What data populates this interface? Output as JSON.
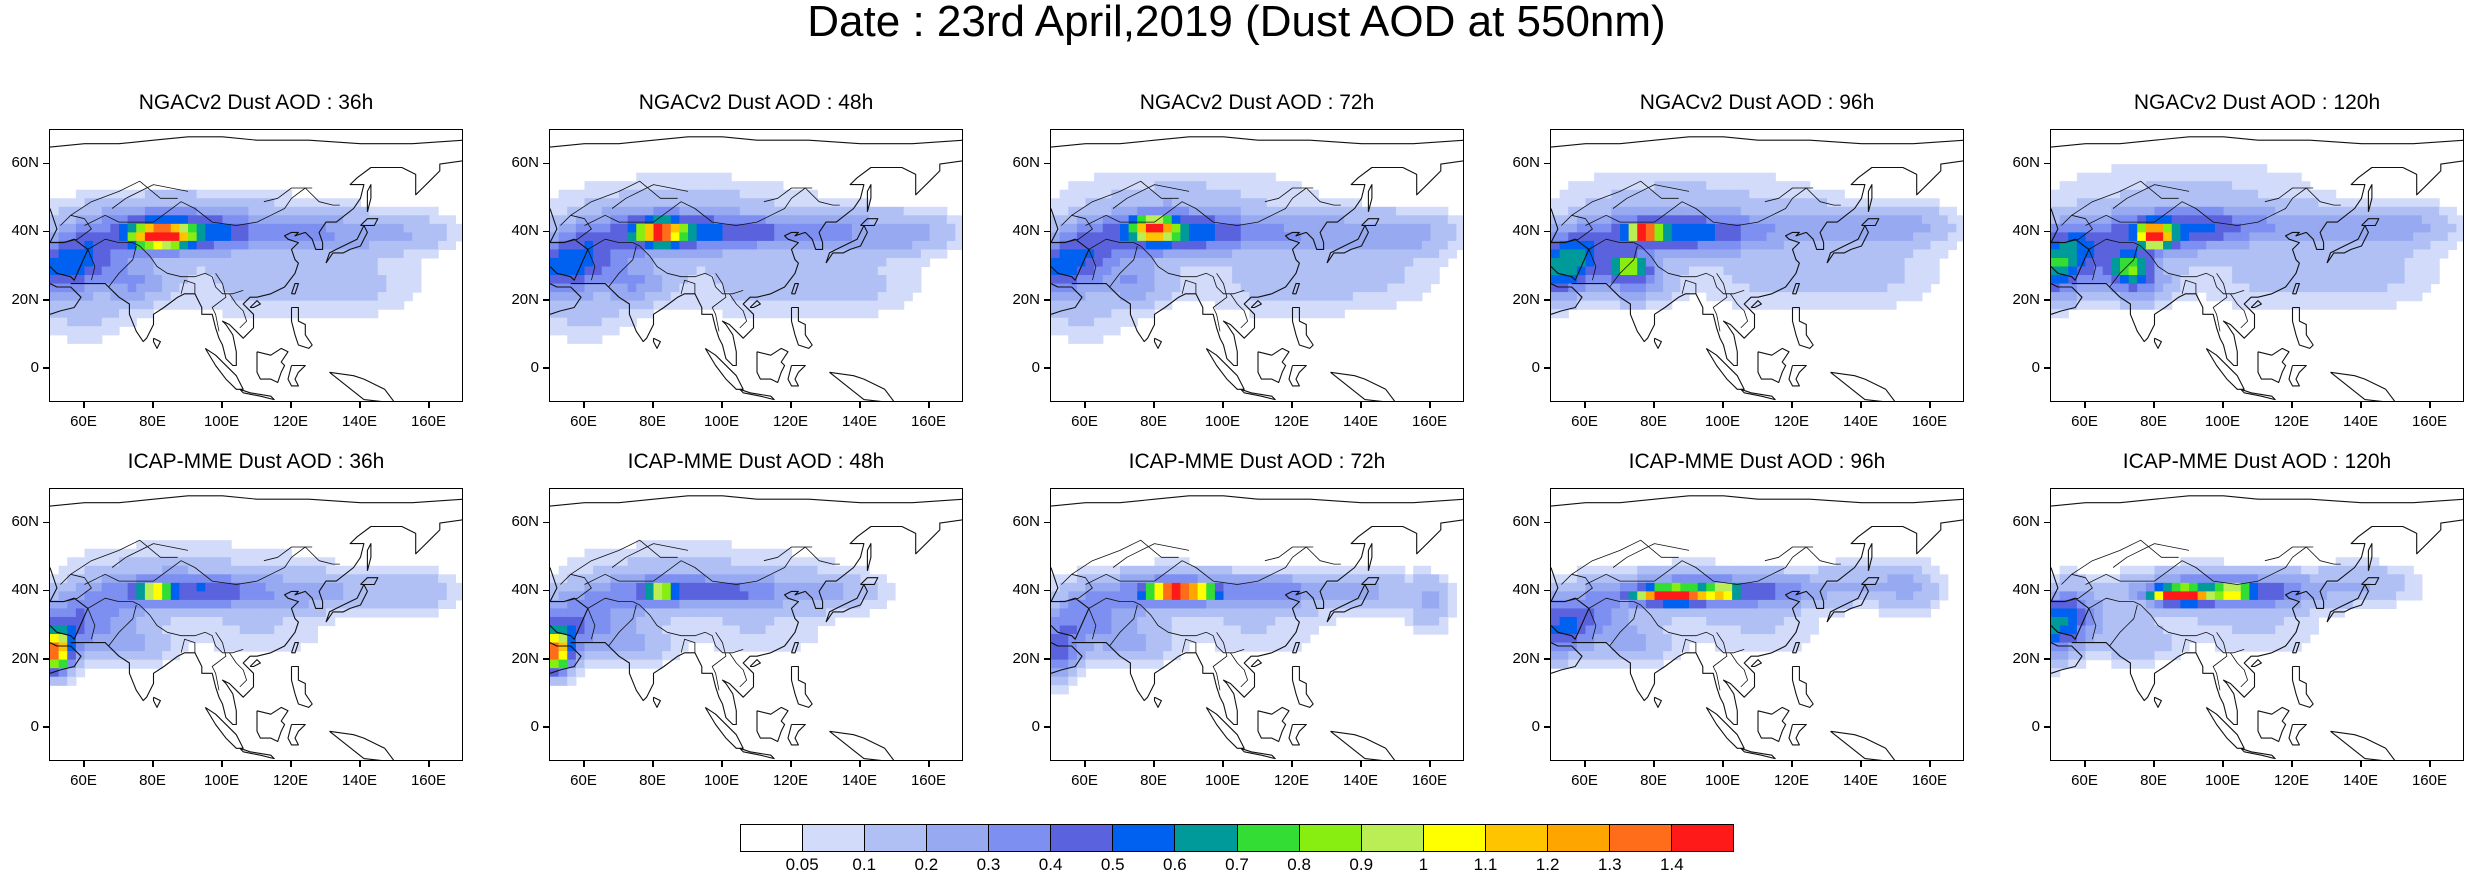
{
  "title": "Date : 23rd April,2019 (Dust AOD at 550nm)",
  "panels": [
    {
      "title": "NGACv2 Dust AOD : 36h",
      "model": "NGACv2",
      "lead": "36h",
      "plumes": [
        [
          82,
          39,
          7,
          3,
          1.4
        ],
        [
          82,
          40,
          20,
          7,
          0.45
        ],
        [
          60,
          33,
          12,
          9,
          0.4
        ],
        [
          50,
          28,
          10,
          8,
          0.35
        ],
        [
          100,
          40,
          16,
          5,
          0.3
        ],
        [
          125,
          40,
          16,
          6,
          0.25
        ],
        [
          150,
          40,
          18,
          6,
          0.2
        ],
        [
          75,
          25,
          10,
          6,
          0.25
        ],
        [
          110,
          25,
          25,
          10,
          0.12
        ],
        [
          140,
          25,
          20,
          10,
          0.1
        ],
        [
          90,
          48,
          40,
          6,
          0.1
        ],
        [
          60,
          15,
          15,
          8,
          0.1
        ]
      ]
    },
    {
      "title": "NGACv2 Dust AOD : 48h",
      "model": "NGACv2",
      "lead": "48h",
      "plumes": [
        [
          82,
          40,
          6,
          3,
          1.1
        ],
        [
          82,
          40,
          20,
          7,
          0.45
        ],
        [
          60,
          33,
          12,
          9,
          0.4
        ],
        [
          50,
          28,
          10,
          8,
          0.35
        ],
        [
          105,
          40,
          18,
          5,
          0.3
        ],
        [
          130,
          40,
          18,
          6,
          0.28
        ],
        [
          155,
          40,
          14,
          6,
          0.22
        ],
        [
          75,
          25,
          10,
          6,
          0.25
        ],
        [
          110,
          25,
          25,
          10,
          0.12
        ],
        [
          140,
          25,
          20,
          10,
          0.1
        ],
        [
          90,
          50,
          40,
          8,
          0.1
        ],
        [
          60,
          15,
          15,
          8,
          0.1
        ]
      ]
    },
    {
      "title": "NGACv2 Dust AOD : 72h",
      "model": "NGACv2",
      "lead": "72h",
      "plumes": [
        [
          80,
          41,
          5,
          3,
          1.1
        ],
        [
          80,
          40,
          18,
          7,
          0.5
        ],
        [
          58,
          33,
          12,
          9,
          0.4
        ],
        [
          50,
          28,
          10,
          8,
          0.3
        ],
        [
          100,
          40,
          18,
          6,
          0.3
        ],
        [
          130,
          40,
          20,
          6,
          0.25
        ],
        [
          155,
          40,
          14,
          6,
          0.2
        ],
        [
          75,
          25,
          10,
          6,
          0.25
        ],
        [
          115,
          25,
          25,
          10,
          0.12
        ],
        [
          145,
          28,
          20,
          10,
          0.1
        ],
        [
          90,
          52,
          40,
          8,
          0.1
        ],
        [
          60,
          15,
          15,
          8,
          0.1
        ]
      ]
    },
    {
      "title": "NGACv2 Dust AOD : 96h",
      "model": "NGACv2",
      "lead": "96h",
      "plumes": [
        [
          77,
          40,
          4,
          2,
          1.4
        ],
        [
          73,
          30,
          5,
          3,
          0.7
        ],
        [
          80,
          40,
          18,
          7,
          0.45
        ],
        [
          58,
          33,
          12,
          9,
          0.45
        ],
        [
          50,
          28,
          10,
          8,
          0.4
        ],
        [
          100,
          40,
          18,
          6,
          0.3
        ],
        [
          130,
          42,
          20,
          6,
          0.22
        ],
        [
          155,
          42,
          14,
          6,
          0.18
        ],
        [
          75,
          25,
          10,
          6,
          0.3
        ],
        [
          115,
          27,
          25,
          10,
          0.12
        ],
        [
          145,
          28,
          20,
          10,
          0.1
        ],
        [
          90,
          52,
          40,
          8,
          0.1
        ]
      ]
    },
    {
      "title": "NGACv2 Dust AOD : 120h",
      "model": "NGACv2",
      "lead": "120h",
      "plumes": [
        [
          80,
          39,
          4,
          3,
          1.4
        ],
        [
          73,
          30,
          6,
          4,
          0.6
        ],
        [
          80,
          40,
          18,
          7,
          0.45
        ],
        [
          56,
          35,
          12,
          9,
          0.45
        ],
        [
          50,
          28,
          10,
          8,
          0.45
        ],
        [
          100,
          42,
          18,
          6,
          0.3
        ],
        [
          130,
          42,
          20,
          6,
          0.22
        ],
        [
          155,
          42,
          14,
          6,
          0.18
        ],
        [
          75,
          25,
          10,
          6,
          0.35
        ],
        [
          115,
          27,
          25,
          10,
          0.12
        ],
        [
          145,
          28,
          20,
          10,
          0.1
        ],
        [
          90,
          54,
          40,
          8,
          0.1
        ]
      ]
    },
    {
      "title": "ICAP-MME Dust AOD : 36h",
      "model": "ICAP-MME",
      "lead": "36h",
      "plumes": [
        [
          80,
          40,
          4,
          2,
          0.9
        ],
        [
          52,
          22,
          3,
          5,
          0.9
        ],
        [
          80,
          40,
          18,
          6,
          0.4
        ],
        [
          100,
          40,
          14,
          5,
          0.35
        ],
        [
          60,
          32,
          12,
          9,
          0.35
        ],
        [
          52,
          24,
          6,
          8,
          0.5
        ],
        [
          125,
          40,
          16,
          6,
          0.25
        ],
        [
          155,
          40,
          14,
          6,
          0.18
        ],
        [
          75,
          25,
          10,
          6,
          0.2
        ],
        [
          110,
          28,
          20,
          8,
          0.1
        ],
        [
          90,
          50,
          40,
          6,
          0.08
        ]
      ]
    },
    {
      "title": "ICAP-MME Dust AOD : 48h",
      "model": "ICAP-MME",
      "lead": "48h",
      "plumes": [
        [
          82,
          40,
          4,
          2,
          0.8
        ],
        [
          52,
          22,
          3,
          5,
          0.9
        ],
        [
          82,
          40,
          18,
          6,
          0.4
        ],
        [
          105,
          40,
          14,
          5,
          0.32
        ],
        [
          60,
          32,
          12,
          9,
          0.35
        ],
        [
          52,
          24,
          6,
          8,
          0.5
        ],
        [
          130,
          40,
          16,
          6,
          0.22
        ],
        [
          75,
          25,
          10,
          6,
          0.2
        ],
        [
          110,
          28,
          20,
          8,
          0.1
        ],
        [
          90,
          50,
          40,
          6,
          0.08
        ]
      ]
    },
    {
      "title": "ICAP-MME Dust AOD : 72h",
      "model": "ICAP-MME",
      "lead": "72h",
      "plumes": [
        [
          85,
          40,
          6,
          2,
          1.4
        ],
        [
          93,
          40,
          5,
          2,
          0.8
        ],
        [
          85,
          40,
          20,
          6,
          0.45
        ],
        [
          60,
          32,
          12,
          9,
          0.35
        ],
        [
          52,
          22,
          6,
          8,
          0.4
        ],
        [
          115,
          40,
          14,
          5,
          0.3
        ],
        [
          140,
          40,
          16,
          6,
          0.22
        ],
        [
          160,
          36,
          6,
          8,
          0.2
        ],
        [
          75,
          25,
          10,
          6,
          0.2
        ],
        [
          110,
          28,
          20,
          8,
          0.1
        ]
      ]
    },
    {
      "title": "ICAP-MME Dust AOD : 96h",
      "model": "ICAP-MME",
      "lead": "96h",
      "plumes": [
        [
          85,
          39,
          10,
          2,
          1.4
        ],
        [
          100,
          40,
          4,
          2,
          0.8
        ],
        [
          90,
          40,
          20,
          6,
          0.45
        ],
        [
          60,
          33,
          12,
          9,
          0.35
        ],
        [
          52,
          28,
          8,
          8,
          0.35
        ],
        [
          115,
          40,
          14,
          5,
          0.3
        ],
        [
          140,
          42,
          16,
          6,
          0.2
        ],
        [
          155,
          40,
          8,
          8,
          0.15
        ],
        [
          75,
          25,
          10,
          6,
          0.2
        ],
        [
          110,
          28,
          20,
          8,
          0.1
        ]
      ]
    },
    {
      "title": "ICAP-MME Dust AOD : 120h",
      "model": "ICAP-MME",
      "lead": "120h",
      "plumes": [
        [
          88,
          39,
          8,
          2,
          1.4
        ],
        [
          103,
          40,
          4,
          2,
          0.8
        ],
        [
          92,
          40,
          20,
          6,
          0.45
        ],
        [
          55,
          33,
          10,
          9,
          0.4
        ],
        [
          50,
          28,
          8,
          8,
          0.35
        ],
        [
          115,
          40,
          14,
          5,
          0.3
        ],
        [
          140,
          42,
          16,
          6,
          0.2
        ],
        [
          75,
          25,
          10,
          6,
          0.2
        ],
        [
          110,
          28,
          20,
          8,
          0.1
        ]
      ]
    }
  ],
  "map": {
    "lon_range": [
      50,
      170
    ],
    "lat_range": [
      -10,
      70
    ],
    "lat_ticks": [
      "0",
      "20N",
      "40N",
      "60N"
    ],
    "lat_tick_values": [
      0,
      20,
      40,
      60
    ],
    "lon_ticks": [
      "60E",
      "80E",
      "100E",
      "120E",
      "140E",
      "160E"
    ],
    "lon_tick_values": [
      60,
      80,
      100,
      120,
      140,
      160
    ]
  },
  "colorbar": {
    "labels": [
      "0.05",
      "0.1",
      "0.2",
      "0.3",
      "0.4",
      "0.5",
      "0.6",
      "0.7",
      "0.8",
      "0.9",
      "1",
      "1.1",
      "1.2",
      "1.3",
      "1.4"
    ],
    "levels": [
      0.05,
      0.1,
      0.2,
      0.3,
      0.4,
      0.5,
      0.6,
      0.7,
      0.8,
      0.9,
      1.0,
      1.1,
      1.2,
      1.3,
      1.4
    ],
    "colors": [
      "#ffffff",
      "#d2dbfa",
      "#b0c0f5",
      "#97a9f1",
      "#7d8ff0",
      "#5a63dd",
      "#0060f0",
      "#009a9a",
      "#33dd33",
      "#88ee11",
      "#bbee55",
      "#ffff00",
      "#ffc400",
      "#ffa500",
      "#ff6d1a",
      "#ff1a1a"
    ]
  }
}
